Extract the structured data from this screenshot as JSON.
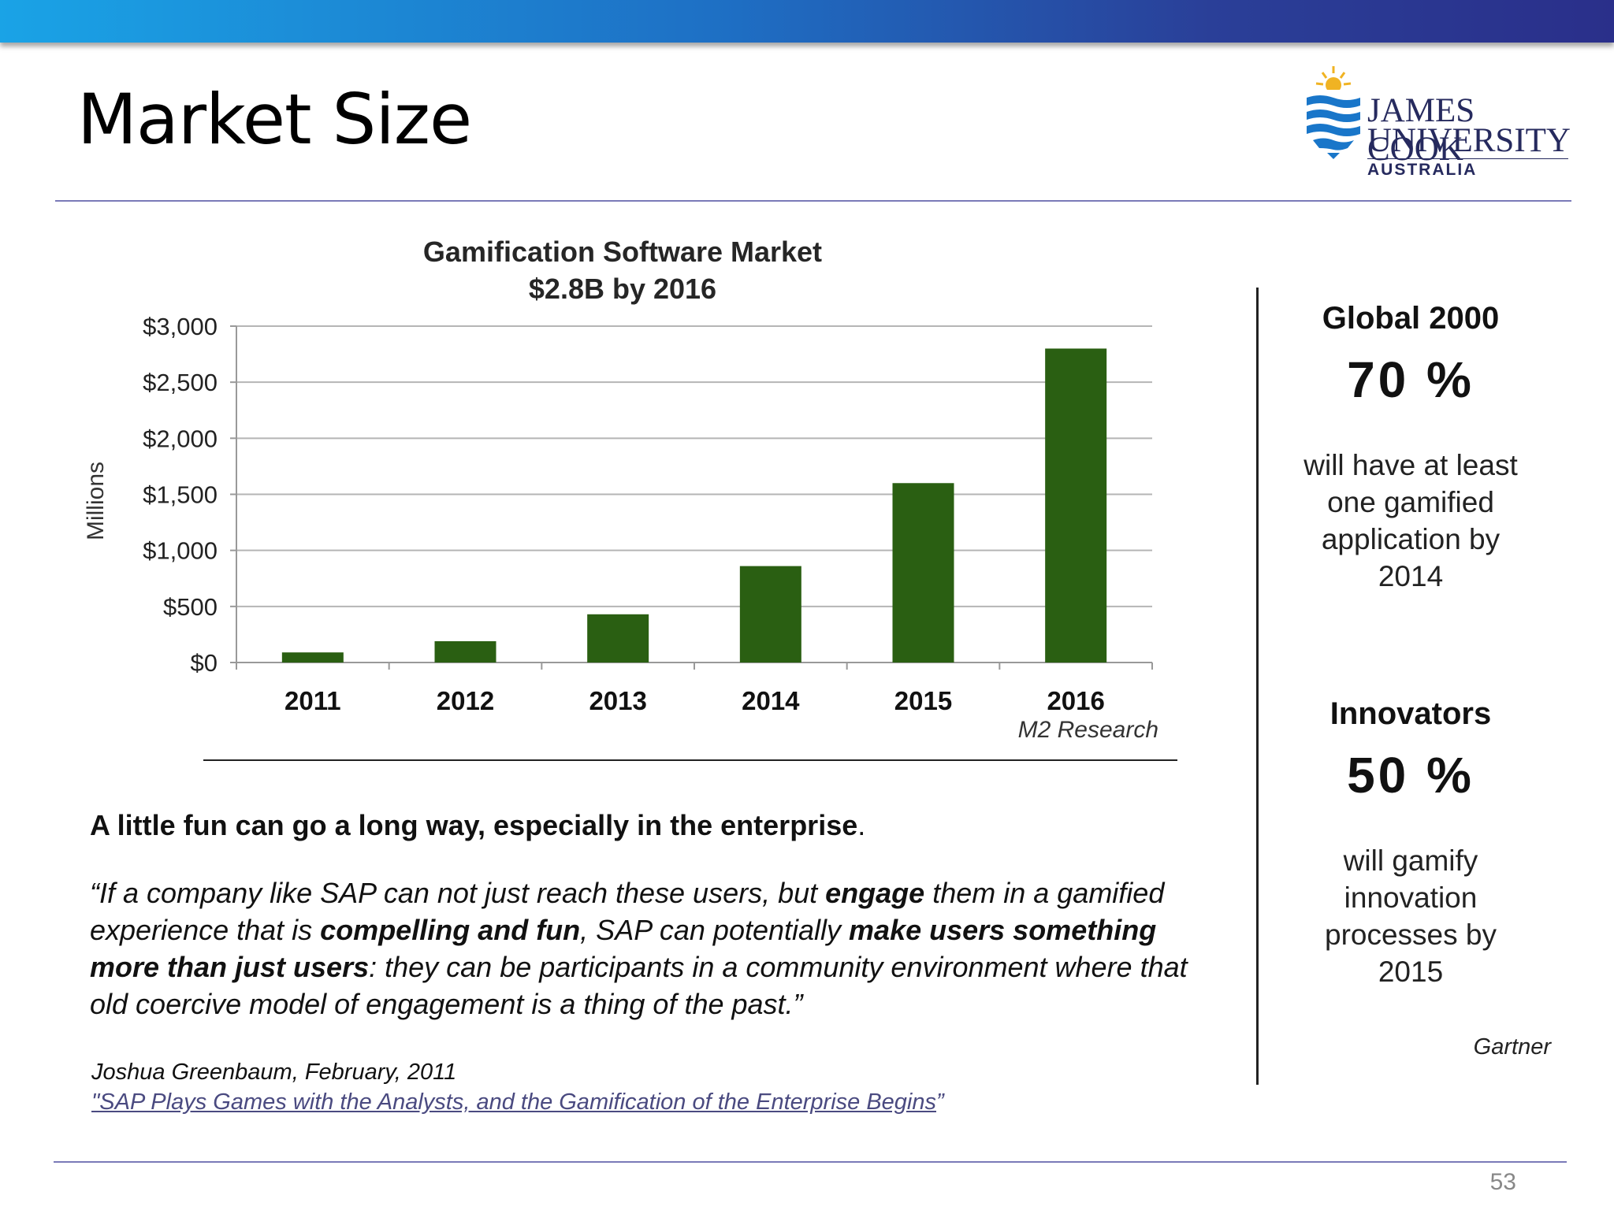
{
  "slide": {
    "title": "Market Size",
    "page_number": "53"
  },
  "logo": {
    "line1": "JAMES COOK",
    "line2": "UNIVERSITY",
    "line3": "AUSTRALIA"
  },
  "chart_data": {
    "type": "bar",
    "title": "Gamification Software Market",
    "subtitle": "$2.8B by 2016",
    "xlabel": "",
    "ylabel": "Millions",
    "categories": [
      "2011",
      "2012",
      "2013",
      "2014",
      "2015",
      "2016"
    ],
    "values": [
      90,
      190,
      430,
      860,
      1600,
      2800
    ],
    "ylim": [
      0,
      3000
    ],
    "yticks": [
      0,
      500,
      1000,
      1500,
      2000,
      2500,
      3000
    ],
    "ytick_labels": [
      "$0",
      "$500",
      "$1,000",
      "$1,500",
      "$2,000",
      "$2,500",
      "$3,000"
    ],
    "grid": true,
    "bar_color": "#2a5f12",
    "source": "M2 Research"
  },
  "quote": {
    "headline_bold": "A little fun can go a long way, especially in the enterprise",
    "headline_end": ".",
    "parts": [
      {
        "t": "“If a company like SAP can not just reach these users, but ",
        "b": false
      },
      {
        "t": "engage",
        "b": true
      },
      {
        "t": " them in a gamified experience that is ",
        "b": false
      },
      {
        "t": "compelling and fun",
        "b": true
      },
      {
        "t": ", SAP can potentially ",
        "b": false
      },
      {
        "t": "make users something more than just users",
        "b": true
      },
      {
        "t": ": they can be participants in a community environment where that old coercive model of engagement is a thing of the past.”",
        "b": false
      }
    ],
    "author": "Joshua Greenbaum,  February, 2011",
    "article_link": "\"SAP Plays Games with the Analysts, and the Gamification of the Enterprise Begins",
    "article_end": "”"
  },
  "stats": {
    "global_head": "Global 2000",
    "global_pct": "70 %",
    "global_text": [
      "will have at least",
      "one gamified",
      "application by",
      "2014"
    ],
    "innov_head": "Innovators",
    "innov_pct": "50 %",
    "innov_text": [
      "will gamify",
      "innovation",
      "processes by",
      "2015"
    ],
    "source": "Gartner"
  }
}
